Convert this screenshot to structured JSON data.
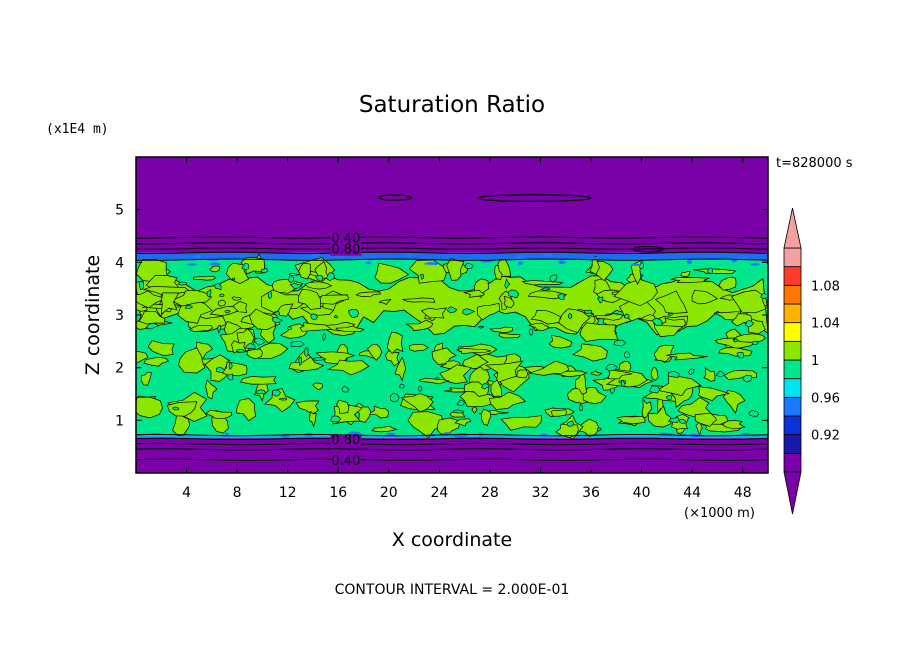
{
  "chart_data": {
    "type": "heatmap",
    "title": "Saturation Ratio",
    "xlabel": "X coordinate",
    "ylabel": "Z coordinate",
    "x_unit": "(×1000 m)",
    "y_unit": "(x1E4 m)",
    "time_label": "t=828000 s",
    "footer": "CONTOUR INTERVAL = 2.000E-01",
    "xlim": [
      0,
      50
    ],
    "ylim": [
      0,
      6
    ],
    "xticks": [
      4,
      8,
      12,
      16,
      20,
      24,
      28,
      32,
      36,
      40,
      44,
      48
    ],
    "yticks": [
      1,
      2,
      3,
      4,
      5
    ],
    "contour_labels": [
      {
        "text": "0.40",
        "x": 16.6,
        "z": 4.47
      },
      {
        "text": "0.80",
        "x": 16.6,
        "z": 4.26
      },
      {
        "text": "0.80",
        "x": 16.6,
        "z": 0.65
      },
      {
        "text": "0.40",
        "x": 16.6,
        "z": 0.25
      }
    ],
    "layers": [
      {
        "z": [
          4.18,
          6.0
        ],
        "level": "below 0.92",
        "color": "#7a00a8"
      },
      {
        "z": [
          4.05,
          4.18
        ],
        "level": "0.92 to 0.96",
        "color": "#1e6cf0"
      },
      {
        "z": [
          0.72,
          4.05
        ],
        "level": "0.98 to 1.02",
        "color": "#00e68c",
        "patch_color": "#8ce600"
      },
      {
        "z": [
          0.66,
          0.72
        ],
        "level": "0.94 to 0.98",
        "color": "#18a8f0"
      },
      {
        "z": [
          0.0,
          0.66
        ],
        "level": "below 0.92",
        "color": "#7a00a8"
      }
    ],
    "colorbar": {
      "levels": [
        {
          "color": "#7a00a8",
          "label": ""
        },
        {
          "color": "#1a18a8",
          "label": "0.92"
        },
        {
          "color": "#0a32d8",
          "label": ""
        },
        {
          "color": "#1e78ff",
          "label": "0.96"
        },
        {
          "color": "#00e4f0",
          "label": ""
        },
        {
          "color": "#00e68c",
          "label": "1"
        },
        {
          "color": "#8ce600",
          "label": ""
        },
        {
          "color": "#ffff00",
          "label": "1.04"
        },
        {
          "color": "#ffb400",
          "label": ""
        },
        {
          "color": "#ff7800",
          "label": "1.08"
        },
        {
          "color": "#ff3c28",
          "label": ""
        },
        {
          "color": "#f2a0a0",
          "label": ""
        }
      ],
      "over_color": "#f2a0a0",
      "under_color": "#7a00a8"
    }
  }
}
